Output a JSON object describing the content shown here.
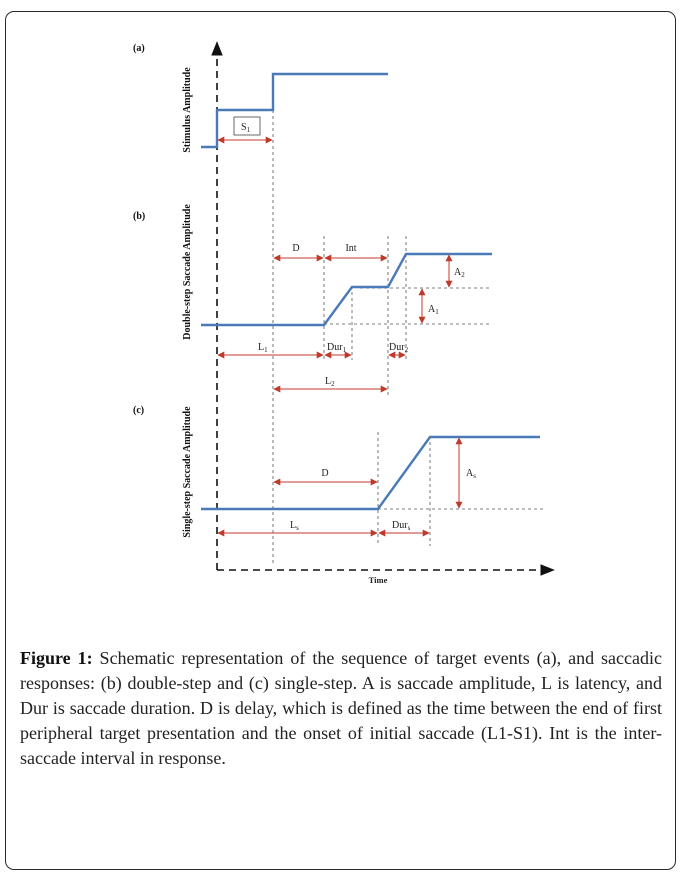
{
  "panels": {
    "a": {
      "label": "(a)",
      "ylabel": "Stimulus Amplitude",
      "interval_labels": {
        "s1": "S",
        "s1_sub": "1"
      }
    },
    "b": {
      "label": "(b)",
      "ylabel": "Double-step Saccade Amplitude",
      "interval_labels": {
        "d": "D",
        "int": "Int",
        "l1": "L",
        "l1_sub": "1",
        "dur1": "Dur",
        "dur1_sub": "1",
        "dur2": "Dur",
        "dur2_sub": "2",
        "l2": "L",
        "l2_sub": "2",
        "a1": "A",
        "a1_sub": "1",
        "a2": "A",
        "a2_sub": "2"
      }
    },
    "c": {
      "label": "(c)",
      "ylabel": "Single-step Saccade Amplitude",
      "interval_labels": {
        "d": "D",
        "ls": "L",
        "ls_sub": "s",
        "durs": "Dur",
        "durs_sub": "s",
        "as": "A",
        "as_sub": "s"
      }
    }
  },
  "xaxis_label": "Time",
  "colors": {
    "trace": "#4a7ab8",
    "arrow": "#c0392b",
    "guide": "#555555",
    "axis": "#111111"
  },
  "caption": {
    "label": "Figure 1:",
    "text": " Schematic representation of the sequence of target events (a), and saccadic responses: (b) double-step and (c) single-step. A is saccade amplitude, L is latency, and Dur is saccade duration. D is delay, which is defined as the time between the end of first peripheral target presentation and the onset of initial saccade (L1-S1). Int is the inter-saccade interval in response."
  }
}
